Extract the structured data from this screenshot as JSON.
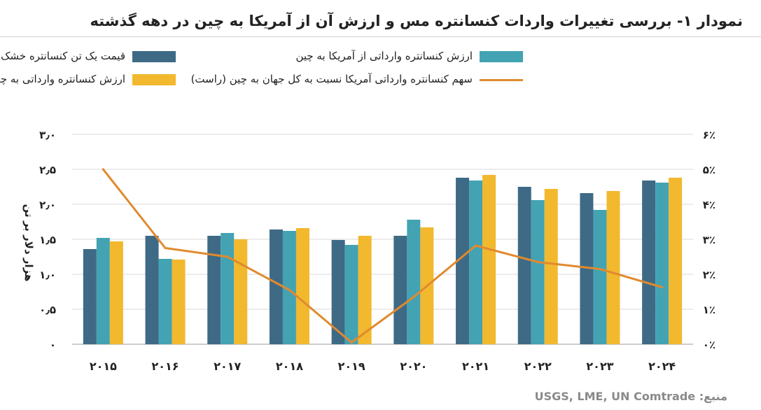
{
  "title": "نمودار ۱- بررسی تغییرات واردات کنسانتره مس و ارزش آن از آمریکا به چین در دهه گذشته",
  "source": "منبع: USGS, LME, UN Comtrade",
  "colors": {
    "s1": "#3e6a86",
    "s2": "#43a3b3",
    "s3": "#f2b82e",
    "s4": "#e08a2e",
    "grid": "#dadada",
    "axis": "#9a9a9a"
  },
  "chart_data": {
    "type": "bar",
    "categories": [
      "۲۰۱۵",
      "۲۰۱۶",
      "۲۰۱۷",
      "۲۰۱۸",
      "۲۰۱۹",
      "۲۰۲۰",
      "۲۰۲۱",
      "۲۰۲۲",
      "۲۰۲۳",
      "۲۰۲۴"
    ],
    "series": [
      {
        "name": "قیمت یک تن کنسانتره خشک",
        "type": "bar",
        "axis": "left",
        "values": [
          1.36,
          1.55,
          1.55,
          1.64,
          1.49,
          1.55,
          2.38,
          2.25,
          2.16,
          2.34
        ]
      },
      {
        "name": "ارزش کنسانتره وارداتی از آمریکا به چین",
        "type": "bar",
        "axis": "left",
        "values": [
          1.52,
          1.22,
          1.59,
          1.62,
          1.42,
          1.78,
          2.34,
          2.06,
          1.92,
          2.31
        ]
      },
      {
        "name": "ارزش کنسانتره وارداتی به چین",
        "type": "bar",
        "axis": "left",
        "values": [
          1.47,
          1.21,
          1.5,
          1.66,
          1.55,
          1.67,
          2.42,
          2.22,
          2.19,
          2.38
        ]
      },
      {
        "name": "سهم کنسانتره وارداتی آمریکا نسبت به کل جهان به چین (راست)",
        "type": "line",
        "axis": "right",
        "values": [
          5.0,
          2.75,
          2.5,
          1.55,
          0.05,
          1.35,
          2.82,
          2.35,
          2.15,
          1.63
        ]
      }
    ],
    "ylabel": "هزار دلار بر تن",
    "y_left": {
      "min": 0,
      "max": 3.0,
      "ticks": [
        "۰",
        "۰٫۵",
        "۱٫۰",
        "۱٫۵",
        "۲٫۰",
        "۲٫۵",
        "۳٫۰"
      ]
    },
    "y_right": {
      "min": 0,
      "max": 6,
      "ticks": [
        "۰٪",
        "۱٪",
        "۲٪",
        "۳٪",
        "۴٪",
        "۵٪",
        "۶٪"
      ]
    },
    "grid": true,
    "legend_position": "top"
  }
}
